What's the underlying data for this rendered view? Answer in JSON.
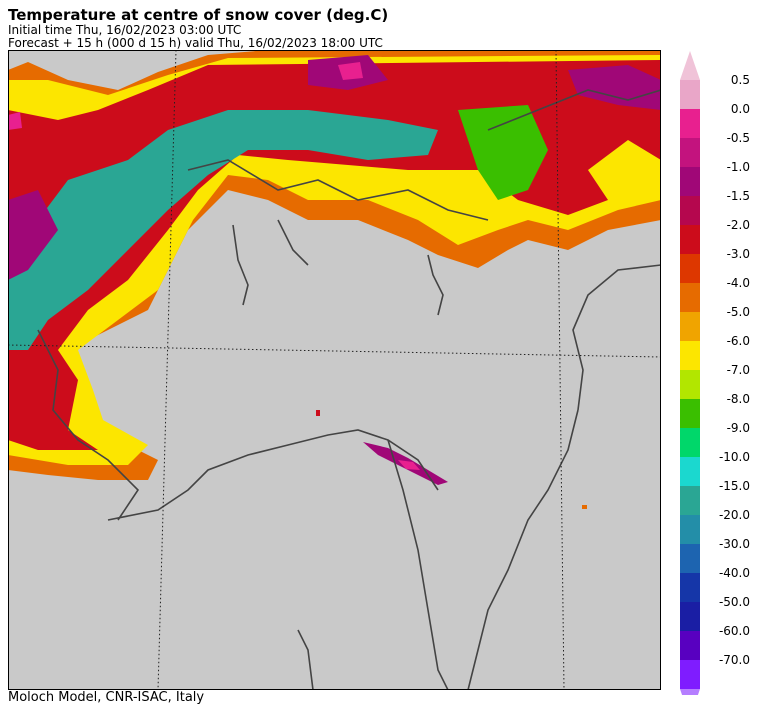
{
  "header": {
    "title": "Temperature at centre of snow cover (deg.C)",
    "initial_time": "Initial time  Thu, 16/02/2023  03:00 UTC",
    "forecast": "Forecast  +  15 h  (000 d 15 h)  valid Thu, 16/02/2023 18:00 UTC"
  },
  "footer": {
    "credit": "Moloch Model, CNR-ISAC, Italy"
  },
  "map": {
    "background_color": "#c9c9c9",
    "border_color": "#444444",
    "graticule": "dotted"
  },
  "legend": {
    "items": [
      {
        "label": "0.5",
        "color": "#e9a6c8"
      },
      {
        "label": "0.0",
        "color": "#e8208f"
      },
      {
        "label": "-0.5",
        "color": "#c3137e"
      },
      {
        "label": "-1.0",
        "color": "#a00777"
      },
      {
        "label": "-1.5",
        "color": "#b5074e"
      },
      {
        "label": "-2.0",
        "color": "#cc0c1b"
      },
      {
        "label": "-3.0",
        "color": "#dd3700"
      },
      {
        "label": "-4.0",
        "color": "#e66b00"
      },
      {
        "label": "-5.0",
        "color": "#f0a400"
      },
      {
        "label": "-6.0",
        "color": "#fce600"
      },
      {
        "label": "-7.0",
        "color": "#b2e600"
      },
      {
        "label": "-8.0",
        "color": "#3abf00"
      },
      {
        "label": "-9.0",
        "color": "#00d76a"
      },
      {
        "label": "-10.0",
        "color": "#1bd8cf"
      },
      {
        "label": "-15.0",
        "color": "#2aa694"
      },
      {
        "label": "-20.0",
        "color": "#238ea8"
      },
      {
        "label": "-30.0",
        "color": "#1d64b0"
      },
      {
        "label": "-40.0",
        "color": "#1536a8"
      },
      {
        "label": "-50.0",
        "color": "#1a1ea4"
      },
      {
        "label": "-60.0",
        "color": "#5800c0"
      },
      {
        "label": "-70.0",
        "color": "#7f1cff"
      }
    ],
    "top_arrow_color": "#f0c3d8",
    "bottom_arrow_color": "#b57eff"
  }
}
